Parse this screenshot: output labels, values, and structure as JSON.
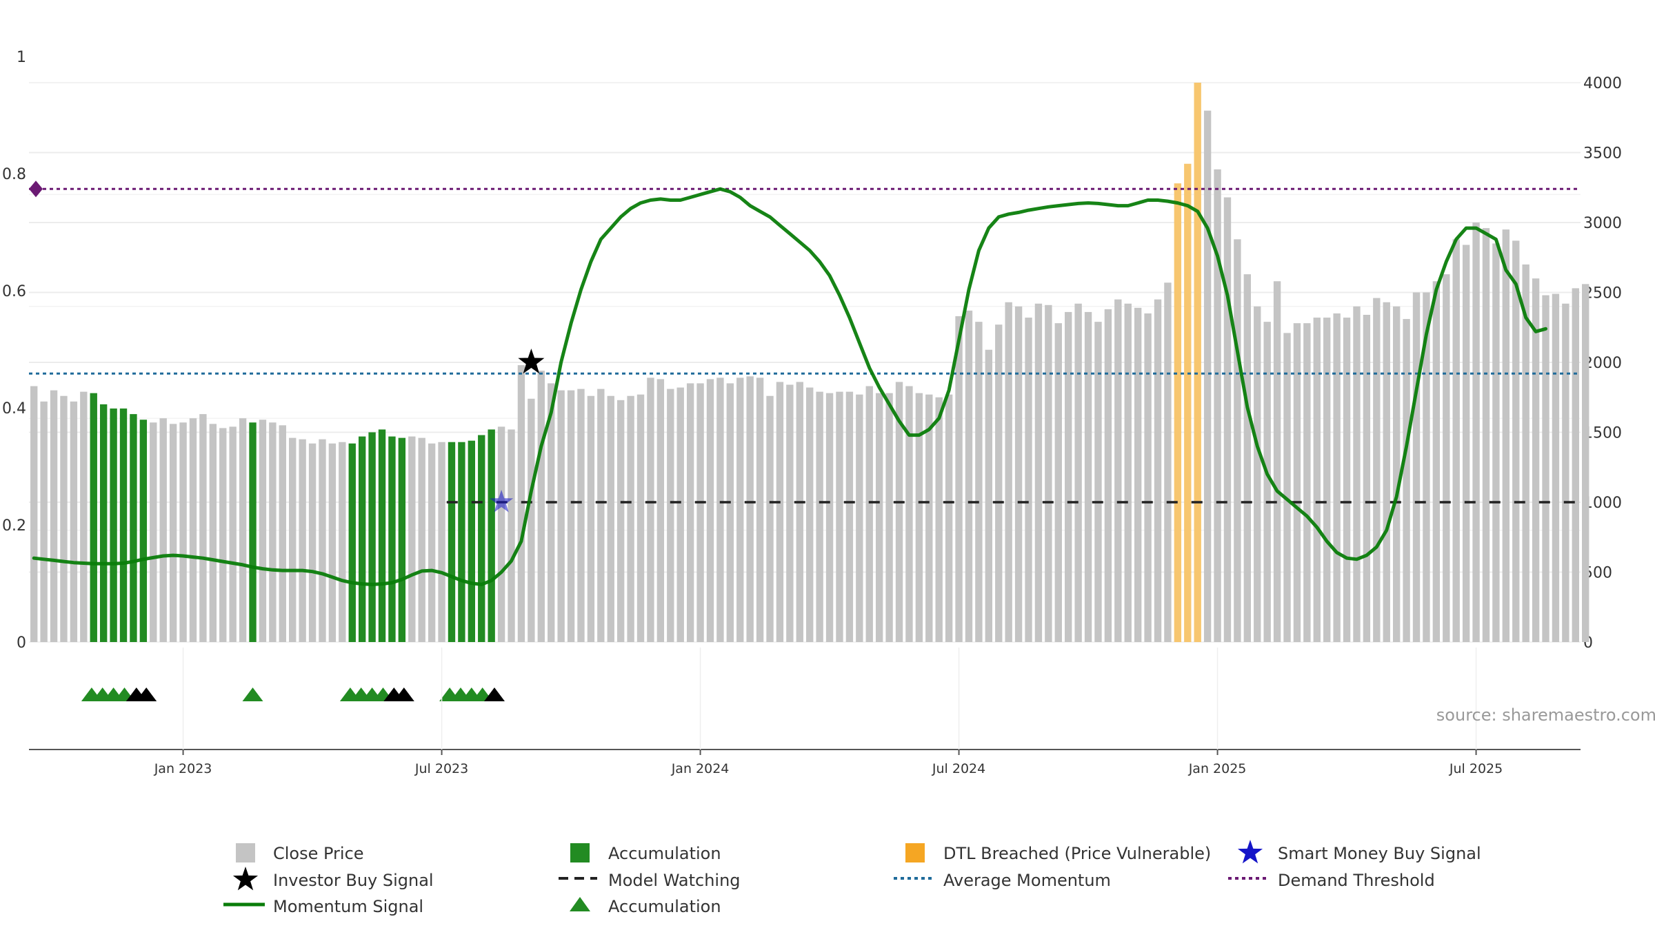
{
  "chart_data": {
    "type": "bar",
    "title": "",
    "source_label": "source: sharemaestro.com",
    "left_axis": {
      "ylim": [
        0,
        1
      ],
      "ticks": [
        "0",
        "0.2",
        "0.4",
        "0.6",
        "0.8",
        "1"
      ],
      "tick_values": [
        0,
        0.2,
        0.4,
        0.6,
        0.8,
        1.0
      ]
    },
    "right_axis": {
      "ylim": [
        0,
        4000
      ],
      "ticks": [
        "0",
        "500",
        "1000",
        "1500",
        "2000",
        "2500",
        "3000",
        "3500",
        "4000"
      ],
      "tick_values": [
        0,
        500,
        1000,
        1500,
        2000,
        2500,
        3000,
        3500,
        4000
      ]
    },
    "x_axis": {
      "ticks": [
        "Jan 2023",
        "Jul 2023",
        "Jan 2024",
        "Jul 2024",
        "Jan 2025",
        "Jul 2025"
      ],
      "tick_weeks": [
        15,
        41,
        67,
        93,
        119,
        145
      ]
    },
    "weeks": 156,
    "close_price": [
      1830,
      1720,
      1800,
      1760,
      1720,
      1790,
      1780,
      1700,
      1670,
      1670,
      1630,
      1590,
      1570,
      1600,
      1560,
      1570,
      1600,
      1630,
      1560,
      1530,
      1540,
      1600,
      1570,
      1590,
      1570,
      1550,
      1460,
      1450,
      1420,
      1450,
      1420,
      1430,
      1420,
      1470,
      1500,
      1520,
      1470,
      1460,
      1470,
      1460,
      1420,
      1430,
      1430,
      1430,
      1440,
      1480,
      1520,
      1540,
      1520,
      1980,
      1740,
      1940,
      1850,
      1800,
      1800,
      1810,
      1760,
      1810,
      1760,
      1730,
      1760,
      1770,
      1890,
      1880,
      1810,
      1820,
      1850,
      1850,
      1880,
      1890,
      1850,
      1890,
      1900,
      1890,
      1760,
      1860,
      1840,
      1860,
      1820,
      1790,
      1780,
      1790,
      1790,
      1770,
      1830,
      1780,
      1780,
      1860,
      1830,
      1780,
      1770,
      1750,
      1770,
      2330,
      2370,
      2290,
      2090,
      2270,
      2430,
      2400,
      2320,
      2420,
      2410,
      2280,
      2360,
      2420,
      2360,
      2290,
      2380,
      2450,
      2420,
      2390,
      2350,
      2450,
      2570,
      3280,
      3420,
      4000,
      3800,
      3380,
      3180,
      2880,
      2630,
      2400,
      2290,
      2580,
      2210,
      2280,
      2280,
      2320,
      2320,
      2350,
      2320,
      2400,
      2340,
      2460,
      2430,
      2400,
      2310,
      2500,
      2500,
      2580,
      2630,
      2880,
      2840,
      3000,
      2960,
      2850,
      2950,
      2870,
      2700,
      2600,
      2480,
      2490,
      2420,
      2530,
      2560
    ],
    "accumulation_weeks": [
      6,
      7,
      8,
      9,
      10,
      11,
      22,
      32,
      33,
      34,
      35,
      36,
      37,
      42,
      43,
      44,
      45,
      46
    ],
    "dtl_breached_weeks": [
      115,
      116,
      117
    ],
    "momentum_signal": [
      0.15,
      0.148,
      0.146,
      0.144,
      0.142,
      0.141,
      0.14,
      0.14,
      0.14,
      0.141,
      0.144,
      0.148,
      0.151,
      0.154,
      0.155,
      0.154,
      0.152,
      0.15,
      0.147,
      0.144,
      0.141,
      0.138,
      0.134,
      0.131,
      0.129,
      0.128,
      0.128,
      0.128,
      0.126,
      0.122,
      0.116,
      0.11,
      0.106,
      0.104,
      0.103,
      0.104,
      0.106,
      0.112,
      0.12,
      0.127,
      0.128,
      0.124,
      0.117,
      0.11,
      0.105,
      0.103,
      0.11,
      0.125,
      0.145,
      0.18,
      0.27,
      0.35,
      0.41,
      0.5,
      0.57,
      0.63,
      0.68,
      0.72,
      0.74,
      0.76,
      0.775,
      0.785,
      0.79,
      0.792,
      0.79,
      0.79,
      0.795,
      0.8,
      0.805,
      0.81,
      0.805,
      0.795,
      0.78,
      0.77,
      0.76,
      0.745,
      0.73,
      0.715,
      0.7,
      0.68,
      0.655,
      0.62,
      0.58,
      0.535,
      0.49,
      0.455,
      0.425,
      0.395,
      0.37,
      0.37,
      0.38,
      0.4,
      0.45,
      0.54,
      0.63,
      0.7,
      0.74,
      0.76,
      0.765,
      0.768,
      0.772,
      0.775,
      0.778,
      0.78,
      0.782,
      0.784,
      0.785,
      0.784,
      0.782,
      0.78,
      0.78,
      0.785,
      0.79,
      0.79,
      0.788,
      0.785,
      0.78,
      0.77,
      0.74,
      0.69,
      0.62,
      0.52,
      0.42,
      0.35,
      0.3,
      0.27,
      0.255,
      0.24,
      0.225,
      0.205,
      0.18,
      0.16,
      0.15,
      0.148,
      0.155,
      0.17,
      0.2,
      0.26,
      0.35,
      0.45,
      0.55,
      0.63,
      0.68,
      0.72,
      0.74,
      0.74,
      0.73,
      0.72,
      0.665,
      0.64,
      0.58,
      0.555,
      0.56
    ],
    "average_momentum": 0.48,
    "demand_threshold": 0.81,
    "model_watching": {
      "level": 0.25,
      "start_week": 42
    },
    "investor_buy_signal": [
      {
        "week": 50,
        "value": 0.5
      }
    ],
    "smart_money_buy_signal": [
      {
        "week": 47,
        "value": 0.25
      }
    ],
    "accumulation_markers": [
      {
        "week": 5.8,
        "color": "green"
      },
      {
        "week": 6.9,
        "color": "green"
      },
      {
        "week": 8.0,
        "color": "green"
      },
      {
        "week": 9.1,
        "color": "green"
      },
      {
        "week": 10.3,
        "color": "black"
      },
      {
        "week": 11.3,
        "color": "black"
      },
      {
        "week": 22,
        "color": "green"
      },
      {
        "week": 31.8,
        "color": "green"
      },
      {
        "week": 32.9,
        "color": "green"
      },
      {
        "week": 34.0,
        "color": "green"
      },
      {
        "week": 35.1,
        "color": "green"
      },
      {
        "week": 36.2,
        "color": "black"
      },
      {
        "week": 37.2,
        "color": "black"
      },
      {
        "week": 41.8,
        "color": "green"
      },
      {
        "week": 42.9,
        "color": "green"
      },
      {
        "week": 44.0,
        "color": "green"
      },
      {
        "week": 45.1,
        "color": "green"
      },
      {
        "week": 46.3,
        "color": "black"
      }
    ],
    "legend": [
      "Close Price",
      "Accumulation",
      "DTL Breached (Price Vulnerable)",
      "Smart Money Buy Signal",
      "Investor Buy Signal",
      "Model Watching",
      "Average Momentum",
      "Demand Threshold",
      "Momentum Signal",
      "Accumulation"
    ]
  },
  "colors": {
    "close_price": "#c4c4c4",
    "accumulation": "#228b22",
    "dtl": "#f7c66f",
    "momentum": "#0a7d0a",
    "average_momentum": "#1f6b9a",
    "demand_threshold": "#6b1a73",
    "model_watching": "#222222",
    "investor": "#000000",
    "smart_money": "#1515c8"
  }
}
